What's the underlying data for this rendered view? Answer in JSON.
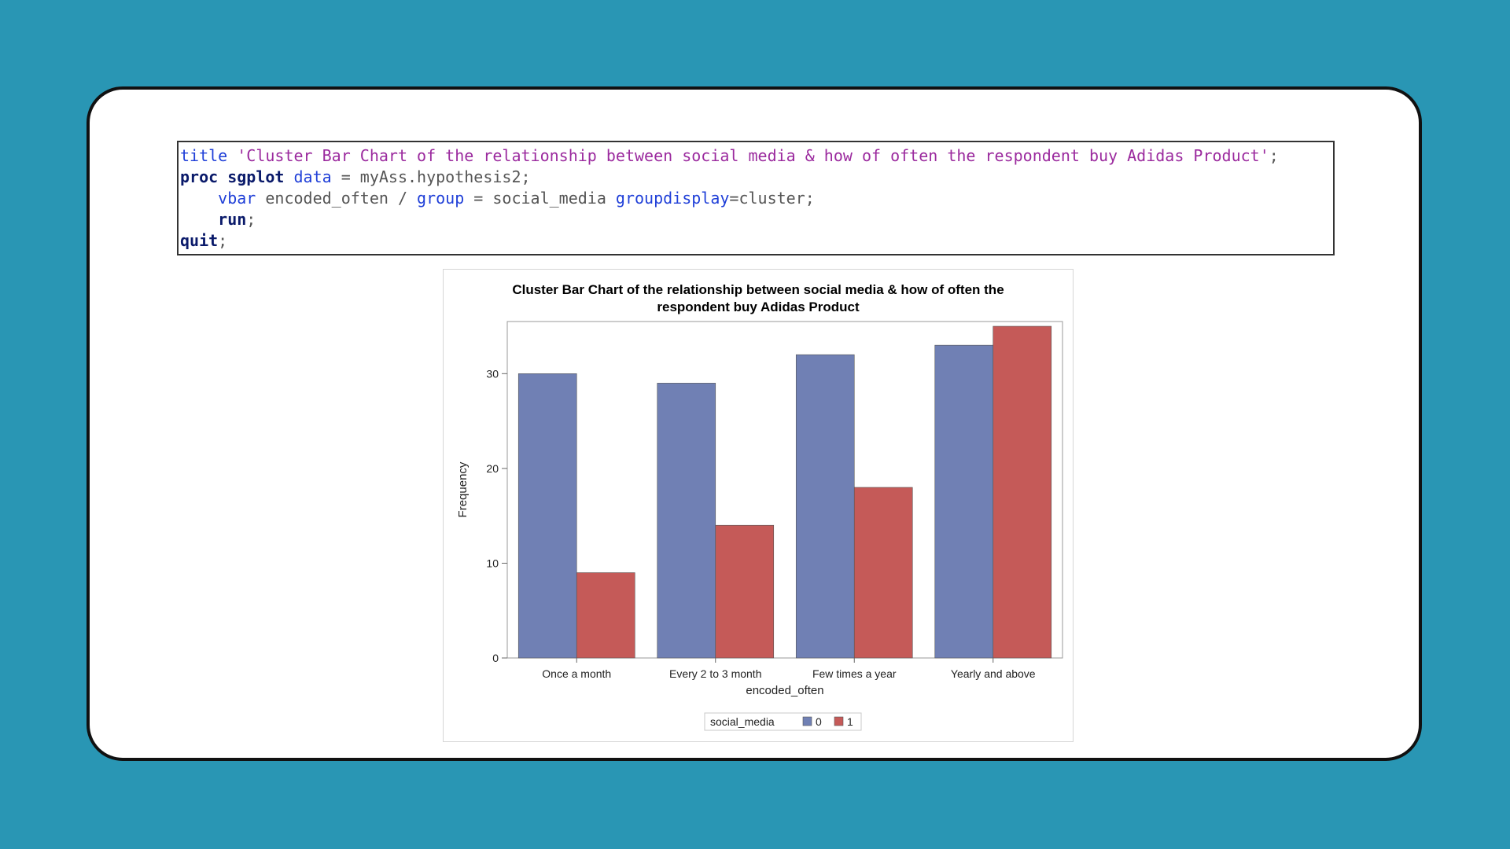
{
  "code": {
    "line1": {
      "kw": "title",
      "str": "'Cluster Bar Chart of the relationship between social media & how of often the respondent buy Adidas Product'",
      "end": ";"
    },
    "line2": {
      "kw1": "proc sgplot",
      "kw2": "data",
      "rest": " = myAss.hypothesis2;"
    },
    "line3": {
      "indent": "    ",
      "kw1": "vbar",
      "mid": " encoded_often / ",
      "kw2": "group",
      "mid2": " = social_media ",
      "kw3": "groupdisplay",
      "end": "=cluster;"
    },
    "line4": {
      "indent": "    ",
      "kw": "run",
      "end": ";"
    },
    "line5": {
      "kw": "quit",
      "end": ";"
    }
  },
  "chart_data": {
    "type": "bar",
    "title_line1": "Cluster Bar Chart of the relationship between social media & how of often the",
    "title_line2": "respondent buy Adidas Product",
    "xlabel": "encoded_often",
    "ylabel": "Frequency",
    "categories": [
      "Once a month",
      "Every 2 to 3 month",
      "Few times a year",
      "Yearly and above"
    ],
    "series": [
      {
        "name": "0",
        "values": [
          30,
          29,
          32,
          33
        ],
        "color": "#7080b4"
      },
      {
        "name": "1",
        "values": [
          9,
          14,
          18,
          35
        ],
        "color": "#c55a58"
      }
    ],
    "ylim": [
      0,
      35.5
    ],
    "yticks": [
      0,
      10,
      20,
      30
    ],
    "legend_title": "social_media",
    "legend_placement": "bottom-center"
  }
}
